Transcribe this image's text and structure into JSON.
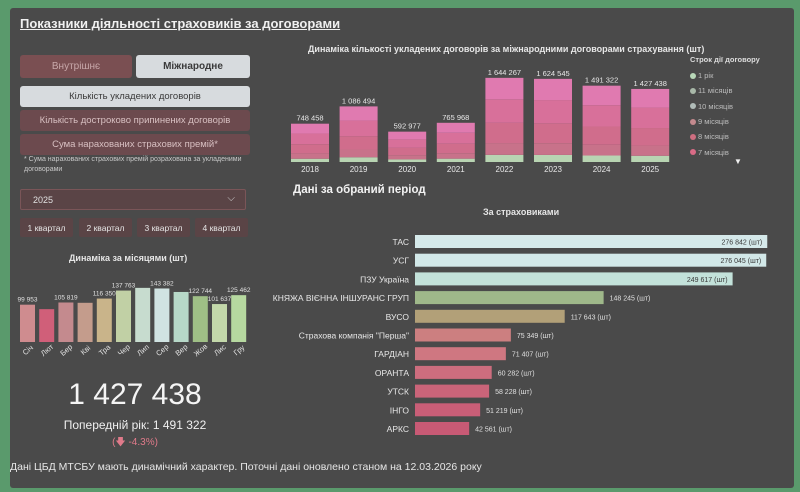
{
  "title": "Показники діяльності страховиків за договорами",
  "tabs": [
    {
      "label": "Внутрішнє",
      "active": false
    },
    {
      "label": "Міжнародне",
      "active": true
    }
  ],
  "metrics": [
    {
      "label": "Кількість укладених договорів",
      "active": true
    },
    {
      "label": "Кількість достроково припинених договорів",
      "active": false
    },
    {
      "label": "Сума нарахованих страхових премій*",
      "active": false
    }
  ],
  "note": "* Сума нарахованих страхових премій розрахована за укладеними договорами",
  "year_select": {
    "value": "2025"
  },
  "quarters": [
    "1 квартал",
    "2 квартал",
    "3 квартал",
    "4 квартал"
  ],
  "monthly_title": "Динаміка за місяцями (шт)",
  "annual_title": "Динаміка кількості укладених договорів за міжнародними договорами страхування (шт)",
  "period_title": "Дані за обраний період",
  "insurers_title": "За страховиками",
  "legend": {
    "title": "Строк дії договору",
    "items": [
      {
        "label": "1 рік",
        "color": "#b8d8b8"
      },
      {
        "label": "11 місяців",
        "color": "#a9b9a9"
      },
      {
        "label": "10 місяців",
        "color": "#b0bcb8"
      },
      {
        "label": "9 місяців",
        "color": "#c48a8e"
      },
      {
        "label": "8 місяців",
        "color": "#cf6e80"
      },
      {
        "label": "7 місяців",
        "color": "#d96b86"
      }
    ],
    "more": "▼"
  },
  "total": {
    "value": "1 427 438",
    "prev_label": "Попередній рік: 1 491 322",
    "delta": "(🡇 -4.3%)"
  },
  "footer": "Дані ЦБД МТСБУ мають динамічний характер. Поточні дані оновлено станом на 12.03.2026 року",
  "chart_data": [
    {
      "type": "bar",
      "title": "Динаміка кількості укладених договорів за міжнародними договорами страхування (шт)",
      "categories": [
        "2018",
        "2019",
        "2020",
        "2021",
        "2022",
        "2023",
        "2024",
        "2025"
      ],
      "values": [
        748458,
        1086494,
        592977,
        765968,
        1644267,
        1624545,
        1491322,
        1427438
      ],
      "value_labels": [
        "748 458",
        "1 086 494",
        "592 977",
        "765 968",
        "1 644 267",
        "1 624 545",
        "1 491 322",
        "1 427 438"
      ],
      "ylim": [
        0,
        1700000
      ],
      "legend_title": "Строк дії договору"
    },
    {
      "type": "bar",
      "title": "Динаміка за місяцями (шт)",
      "categories": [
        "Січ",
        "Лют",
        "Бер",
        "Кві",
        "Тра",
        "Чер",
        "Лип",
        "Сер",
        "Вер",
        "Жов",
        "Лис",
        "Гру"
      ],
      "values": [
        99953,
        88000,
        105819,
        105000,
        116350,
        137763,
        145000,
        143382,
        134000,
        122744,
        101637,
        125462
      ],
      "value_labels": [
        "99 953",
        "",
        "105 819",
        "",
        "116 350",
        "137 763",
        "",
        "143 382",
        "",
        "122 744",
        "101 637",
        "125 462"
      ],
      "colors": [
        "#cf8c8f",
        "#d05f79",
        "#c48a8e",
        "#c49c8c",
        "#c9b48a",
        "#c1d0a5",
        "#c7dccf",
        "#d0e3e2",
        "#b7d8c8",
        "#9fbf86",
        "#c3d8aa",
        "#b6d8a0"
      ],
      "ylim": [
        0,
        150000
      ]
    },
    {
      "type": "bar",
      "orientation": "horizontal",
      "title": "За страховиками",
      "categories": [
        "ТАС",
        "УСГ",
        "ПЗУ Україна",
        "КНЯЖА ВІЄННА ІНШУРАНС ГРУП",
        "ВУСО",
        "Страхова компанія \"Перша\"",
        "ГАРДІАН",
        "ОРАНТА",
        "УТСК",
        "ІНГО",
        "АРКС"
      ],
      "values": [
        276842,
        276045,
        249617,
        148245,
        117643,
        75349,
        71407,
        60282,
        58228,
        51219,
        42561
      ],
      "value_labels": [
        "276 842 (шт)",
        "276 045 (шт)",
        "249 617 (шт)",
        "148 245 (шт)",
        "117 643 (шт)",
        "75 349 (шт)",
        "71 407 (шт)",
        "60 282 (шт)",
        "58 228 (шт)",
        "51 219 (шт)",
        "42 561 (шт)"
      ],
      "colors": [
        "#d5e9ea",
        "#d2e8e8",
        "#c3e2da",
        "#9fb88a",
        "#b2a078",
        "#cc7f80",
        "#cf7781",
        "#cd6d7e",
        "#ca6479",
        "#c95e77",
        "#c85a75"
      ],
      "xlim": [
        0,
        290000
      ]
    }
  ]
}
